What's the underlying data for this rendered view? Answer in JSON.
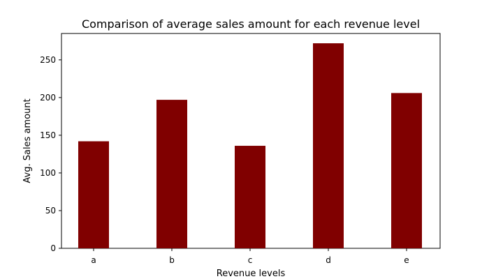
{
  "chart_data": {
    "type": "bar",
    "title": "Comparison of average sales amount for each revenue level",
    "xlabel": "Revenue levels",
    "ylabel": "Avg. Sales amount",
    "categories": [
      "a",
      "b",
      "c",
      "d",
      "e"
    ],
    "values": [
      142,
      197,
      136,
      272,
      206
    ],
    "ylim": [
      0,
      285
    ],
    "yticks": [
      0,
      50,
      100,
      150,
      200,
      250
    ],
    "grid": false,
    "colors": {
      "bar": "#800000",
      "axis": "#000000",
      "background": "#ffffff"
    }
  }
}
